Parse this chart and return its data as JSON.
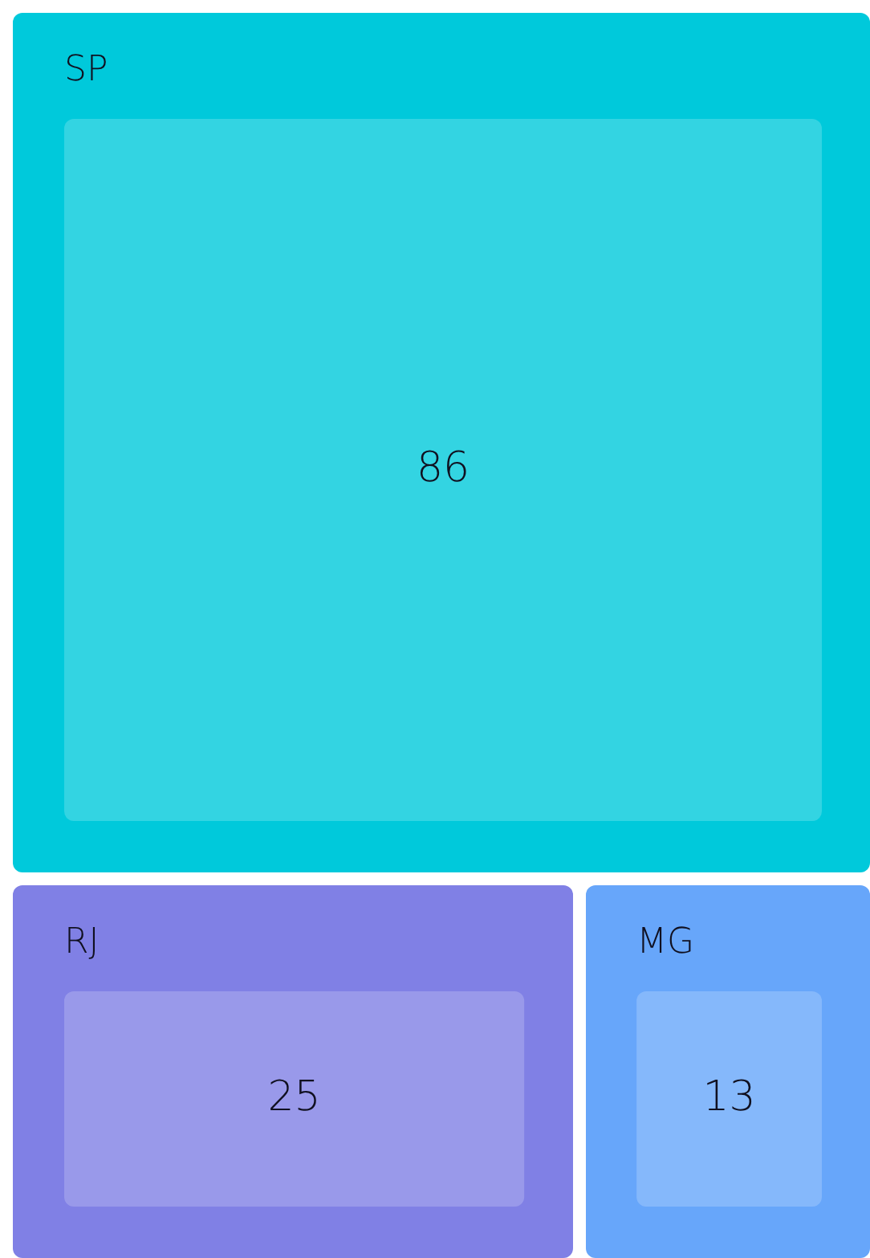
{
  "chart_data": {
    "type": "other",
    "categories": [
      "SP",
      "RJ",
      "MG"
    ],
    "values": [
      86,
      25,
      13
    ],
    "colors": [
      "#33d4e2",
      "#9999ea",
      "#85b8fb"
    ],
    "data_labels": true
  }
}
